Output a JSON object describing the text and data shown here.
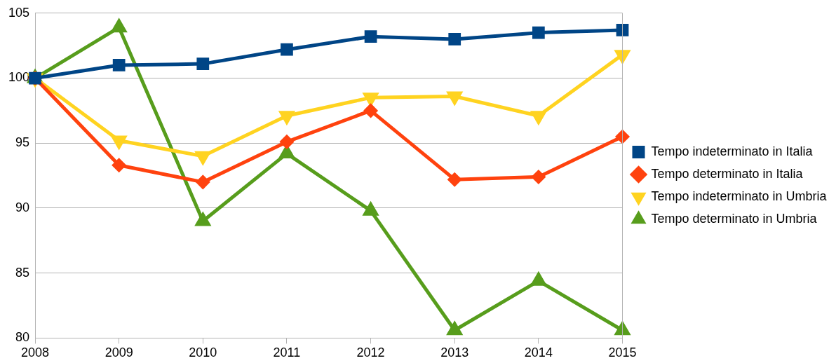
{
  "chart_data": {
    "type": "line",
    "categories": [
      "2008",
      "2009",
      "2010",
      "2011",
      "2012",
      "2013",
      "2014",
      "2015"
    ],
    "series": [
      {
        "name": "Tempo indeterminato in Italia",
        "color": "#004586",
        "marker": "square",
        "values": [
          100,
          101.0,
          101.1,
          102.2,
          103.2,
          103.0,
          103.5,
          103.7
        ]
      },
      {
        "name": "Tempo determinato in Italia",
        "color": "#ff420e",
        "marker": "diamond",
        "values": [
          100,
          93.3,
          92.0,
          95.1,
          97.5,
          92.2,
          92.4,
          95.5
        ]
      },
      {
        "name": "Tempo indeterminato in Umbria",
        "color": "#ffd320",
        "marker": "triangle-down",
        "values": [
          100,
          95.2,
          94.0,
          97.1,
          98.5,
          98.6,
          97.1,
          101.8
        ]
      },
      {
        "name": "Tempo determinato in Umbria",
        "color": "#579d1c",
        "marker": "triangle",
        "values": [
          100,
          103.9,
          89.0,
          94.2,
          89.8,
          80.6,
          84.4,
          80.6
        ]
      }
    ],
    "ylim": [
      80,
      105
    ],
    "yticks": [
      80,
      85,
      90,
      95,
      100,
      105
    ],
    "grid": "y",
    "legend": "right",
    "line_style": "solid"
  }
}
